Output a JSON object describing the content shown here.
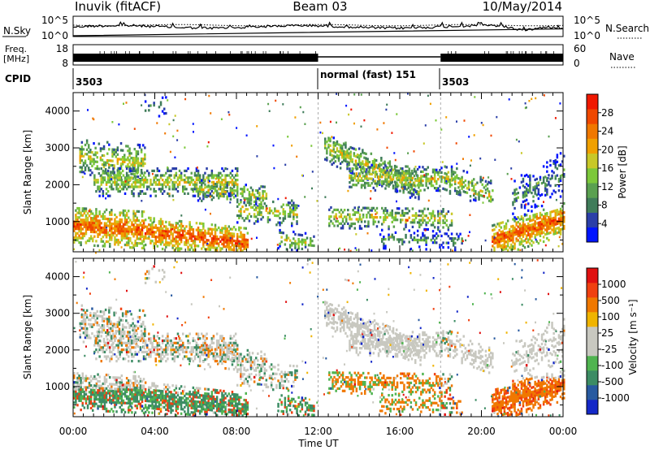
{
  "header": {
    "station": "Inuvik (fitACF)",
    "beam": "Beam 03",
    "date": "10/May/2014"
  },
  "strips": {
    "nsky_label": "N.Sky",
    "nsky_ticks": [
      "10^5",
      "10^0"
    ],
    "nsearch_label": "N.Search",
    "nsearch_ticks": [
      "10^5",
      "10^0"
    ],
    "freq_label_1": "Freq.",
    "freq_label_2": "[MHz]",
    "freq_ticks": [
      "18",
      "8"
    ],
    "nave_label": "Nave",
    "nave_ticks": [
      "60",
      "0"
    ],
    "cpid_label": "CPID",
    "cpid_segments": [
      "3503",
      "normal (fast) 151",
      "3503"
    ]
  },
  "chart_data": [
    {
      "type": "heatmap",
      "name": "power",
      "ylabel": "Slant Range [km]",
      "yticks": [
        1000,
        2000,
        3000,
        4000
      ],
      "ylim": [
        180,
        4500
      ],
      "xlim_hours": [
        0,
        24
      ],
      "colorbar": {
        "label": "Power [dB]",
        "ticks": [
          "28",
          "24",
          "20",
          "16",
          "12",
          "8",
          "4"
        ],
        "colors": [
          "#0014ff",
          "#2b3fa8",
          "#3f7c5a",
          "#5aa050",
          "#7cc83a",
          "#c8c828",
          "#f0a000",
          "#f07800",
          "#f04800",
          "#f01800"
        ]
      }
    },
    {
      "type": "heatmap",
      "name": "velocity",
      "ylabel": "Slant Range [km]",
      "yticks": [
        1000,
        2000,
        3000,
        4000
      ],
      "ylim": [
        180,
        4500
      ],
      "xlim_hours": [
        0,
        24
      ],
      "xticks": [
        "00:00",
        "04:00",
        "08:00",
        "12:00",
        "16:00",
        "20:00",
        "00:00"
      ],
      "xlabel": "Time UT",
      "colorbar": {
        "label": "Velocity [m s⁻¹]",
        "ticks": [
          "1000",
          "500",
          "100",
          "25",
          "-25",
          "-100",
          "-500",
          "-1000"
        ],
        "colors": [
          "#1428c8",
          "#285aa0",
          "#3c8c64",
          "#50b450",
          "#c8c8c0",
          "#c8c8c0",
          "#f0b400",
          "#f07800",
          "#f04010",
          "#e01010"
        ]
      }
    }
  ]
}
